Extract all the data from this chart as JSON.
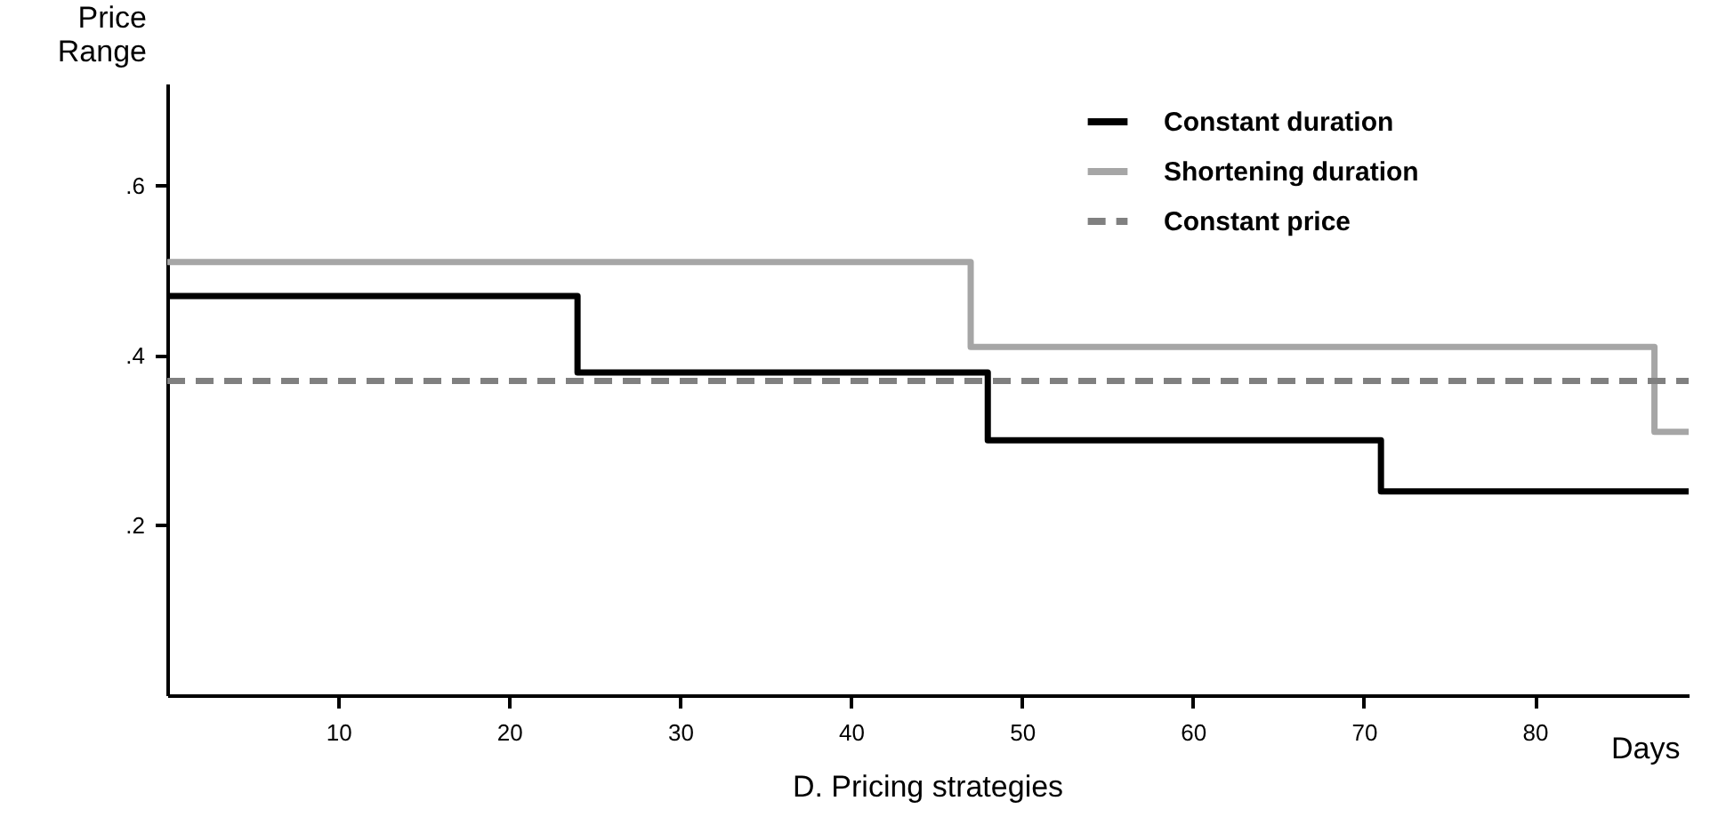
{
  "chart_data": {
    "type": "step",
    "title": "D. Pricing strategies",
    "xlabel": "Days",
    "ylabel": "Price\nRange",
    "xlim": [
      0,
      89
    ],
    "ylim": [
      0,
      0.72
    ],
    "xticks": [
      10,
      20,
      30,
      40,
      50,
      60,
      70,
      80
    ],
    "yticks": [
      {
        "value": 0.2,
        "label": ".2"
      },
      {
        "value": 0.4,
        "label": ".4"
      },
      {
        "value": 0.6,
        "label": ".6"
      }
    ],
    "grid": false,
    "legend": "top right",
    "series": [
      {
        "name": "Constant duration",
        "color": "#000000",
        "line_style": "solid",
        "x": [
          0,
          24,
          48,
          71,
          89
        ],
        "values": [
          0.47,
          0.38,
          0.3,
          0.24,
          0.24
        ]
      },
      {
        "name": "Shortening duration",
        "color": "#a6a6a6",
        "line_style": "solid",
        "x": [
          0,
          47,
          87,
          89
        ],
        "values": [
          0.51,
          0.41,
          0.31,
          0.31
        ]
      },
      {
        "name": "Constant price",
        "color": "#808080",
        "line_style": "dashed",
        "x": [
          0,
          89
        ],
        "values": [
          0.37,
          0.37
        ]
      }
    ]
  }
}
